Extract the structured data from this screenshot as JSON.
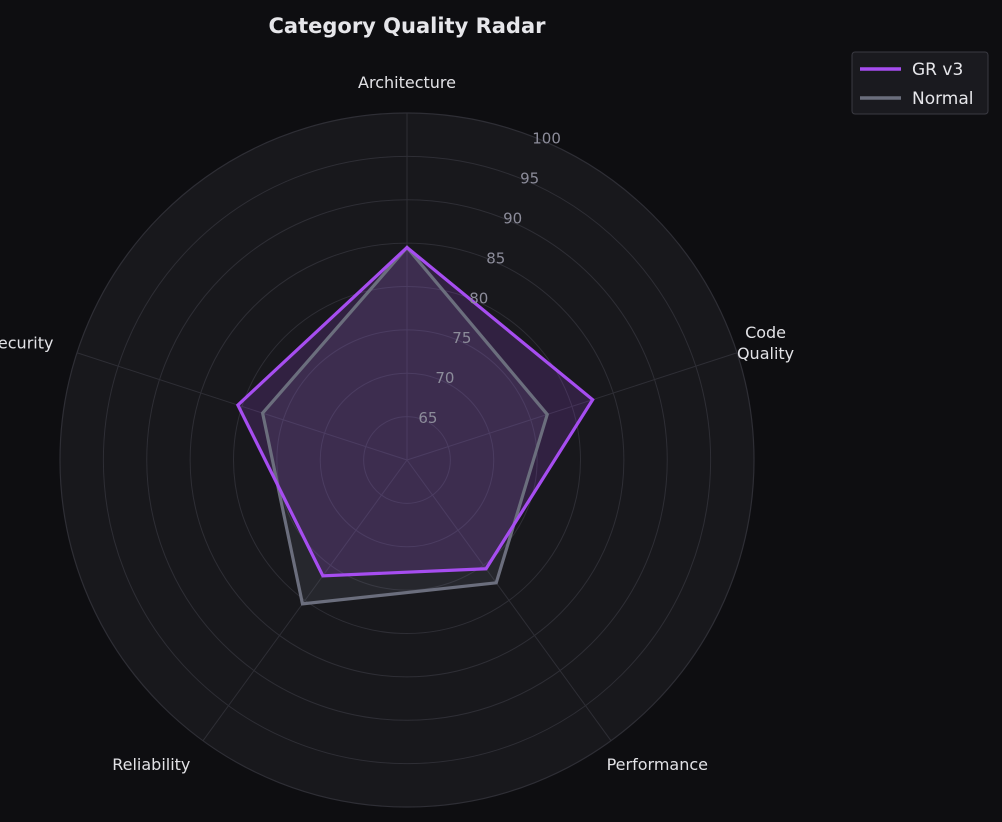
{
  "chart_data": {
    "type": "radar",
    "title": "Category Quality Radar",
    "categories": [
      "Architecture",
      "Code\nQuality",
      "Performance",
      "Reliability",
      "Security"
    ],
    "rlim": [
      60,
      100
    ],
    "r_ticks": [
      65,
      70,
      75,
      80,
      85,
      90,
      95,
      100
    ],
    "grid": true,
    "legend_position": "top-right",
    "series": [
      {
        "name": "GR v3",
        "color": "#a64df0",
        "values": [
          84.5,
          82.5,
          75.5,
          76.5,
          80.5
        ]
      },
      {
        "name": "Normal",
        "color": "#6b6e7d",
        "values": [
          84.5,
          77.0,
          77.5,
          80.5,
          77.5
        ]
      }
    ],
    "colors": {
      "background": "#0e0e11",
      "plot_area": "#18181c",
      "grid": "#2e2e35"
    }
  }
}
